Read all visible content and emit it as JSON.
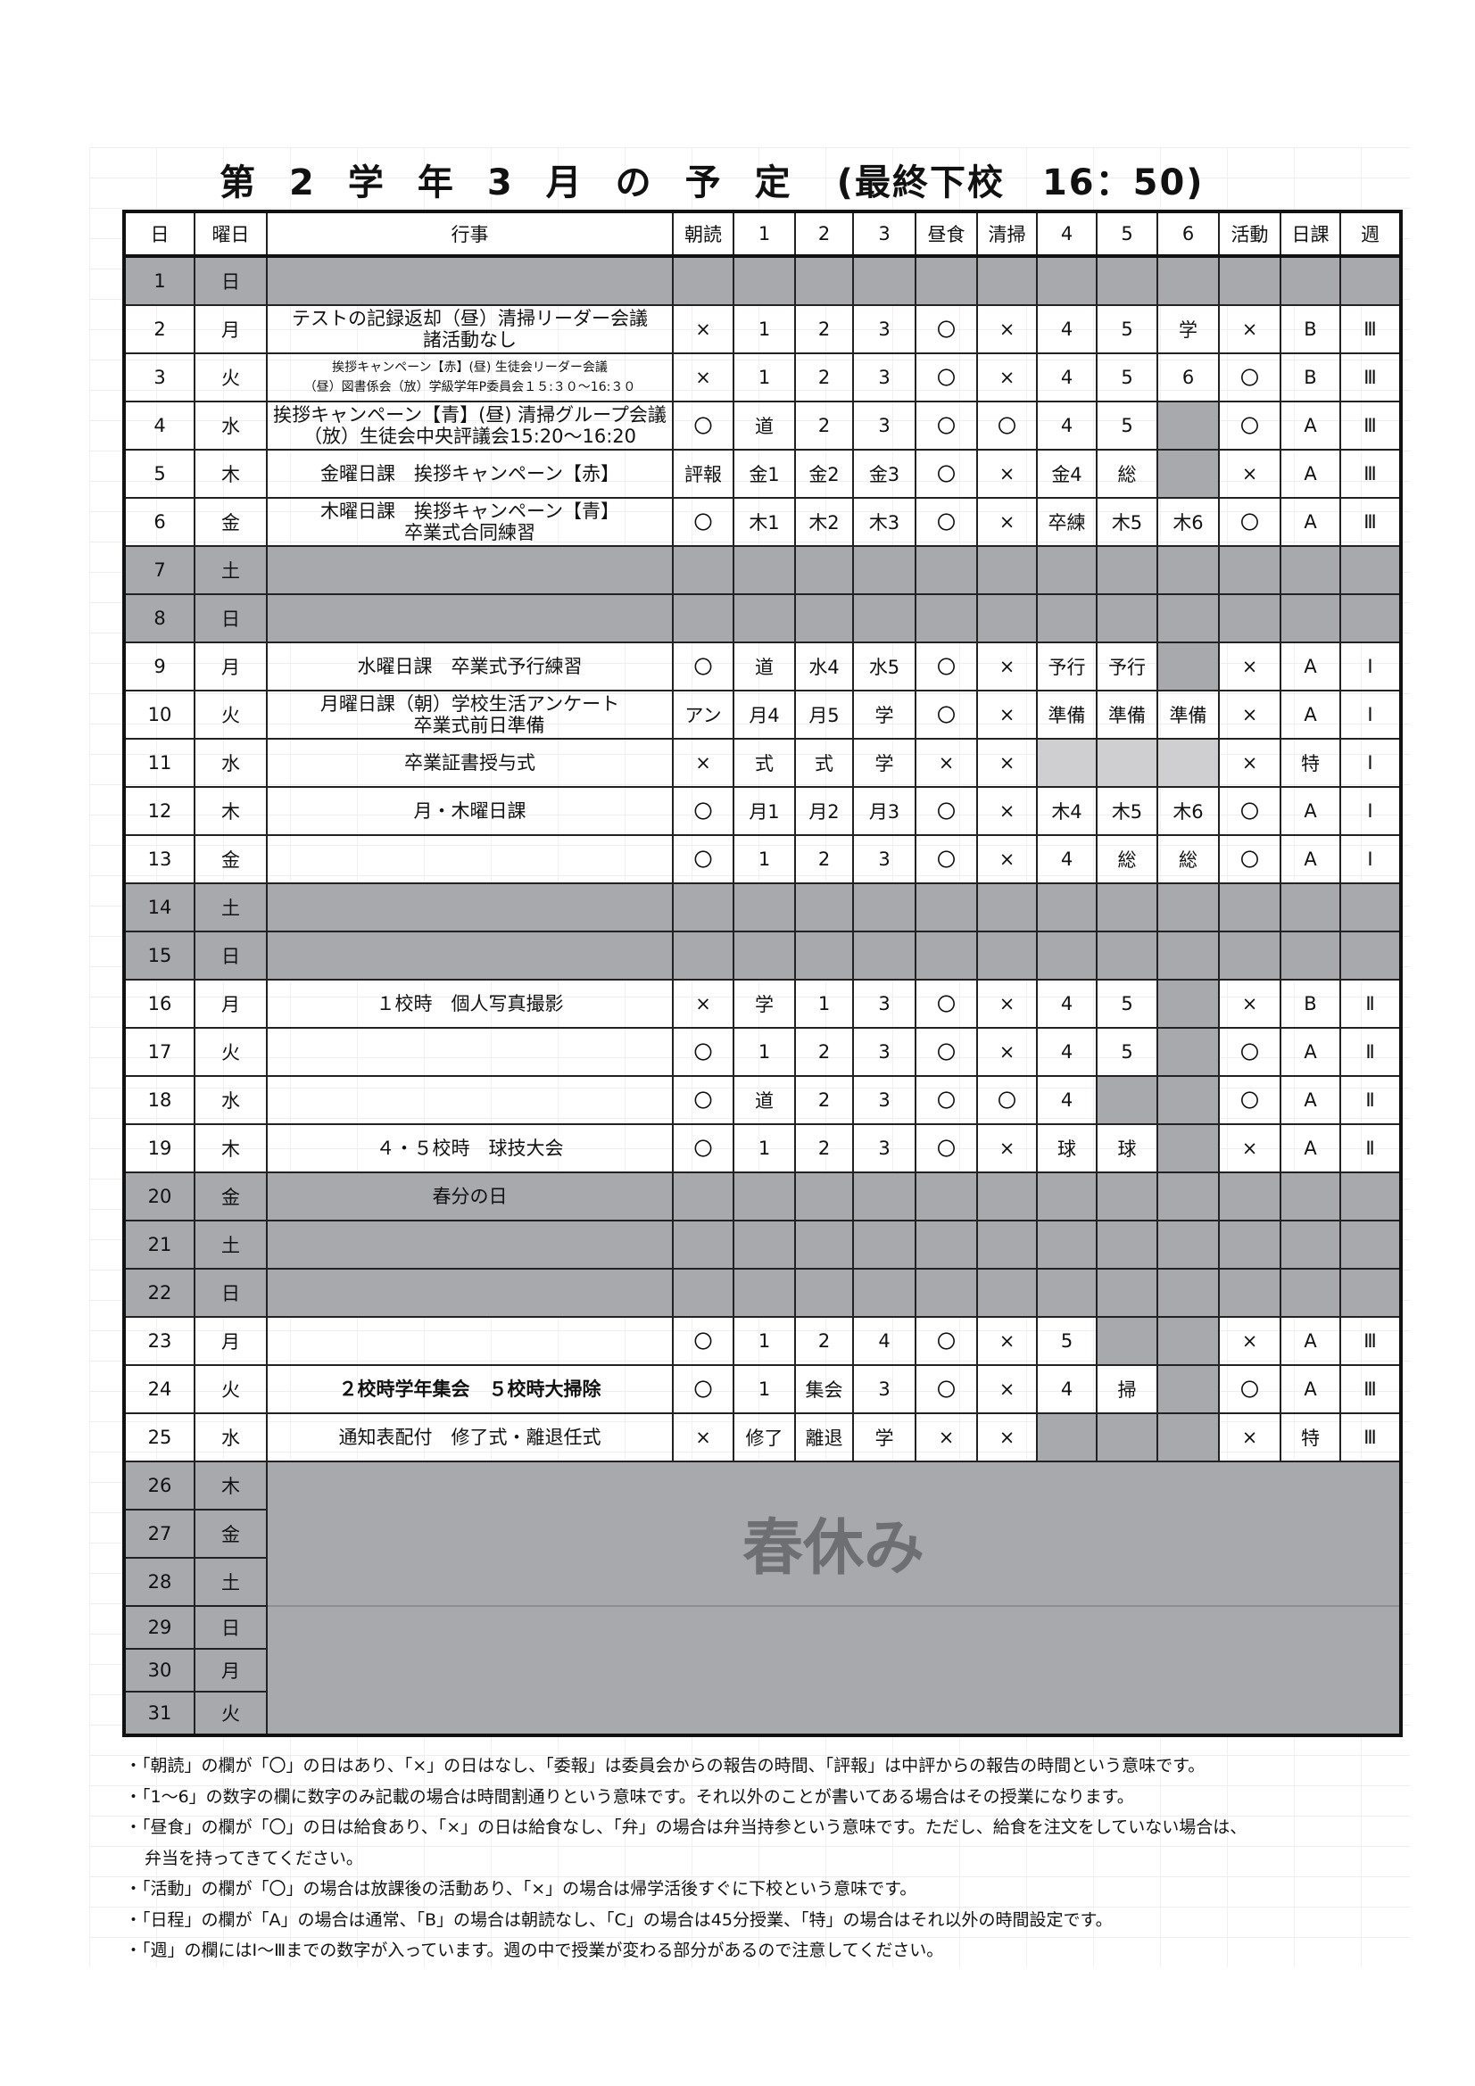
{
  "title": {
    "main": "第2学年3月の予定",
    "sub": "(最終下校　16：50)"
  },
  "colors": {
    "holiday_gray": "#a8a9ad",
    "light_gray": "#cfcfd1"
  },
  "headers": [
    "日",
    "曜日",
    "行事",
    "朝読",
    "1",
    "2",
    "3",
    "昼食",
    "清掃",
    "4",
    "5",
    "6",
    "活動",
    "日課",
    "週"
  ],
  "rows": [
    {
      "day": "1",
      "wd": "日",
      "holiday": true,
      "event": []
    },
    {
      "day": "2",
      "wd": "月",
      "event": [
        "テストの記録返却（昼）清掃リーダー会議",
        "諸活動なし"
      ],
      "cells": [
        "×",
        "1",
        "2",
        "3",
        "〇",
        "×",
        "4",
        "5",
        "学",
        "×",
        "B",
        "Ⅲ"
      ]
    },
    {
      "day": "3",
      "wd": "火",
      "small": true,
      "event": [
        "挨拶キャンペーン【赤】(昼) 生徒会リーダー会議",
        "（昼）図書係会（放）学級学年P委員会１５:３０～16:３０"
      ],
      "cells": [
        "×",
        "1",
        "2",
        "3",
        "〇",
        "×",
        "4",
        "5",
        "6",
        "〇",
        "B",
        "Ⅲ"
      ]
    },
    {
      "day": "4",
      "wd": "水",
      "event": [
        "挨拶キャンペーン【青】(昼) 清掃グループ会議",
        "（放）生徒会中央評議会15:20～16:20"
      ],
      "cells": [
        "〇",
        "道",
        "2",
        "3",
        "〇",
        "〇",
        "4",
        "5",
        null,
        "〇",
        "A",
        "Ⅲ"
      ]
    },
    {
      "day": "5",
      "wd": "木",
      "event": [
        "金曜日課　挨拶キャンペーン【赤】"
      ],
      "cells": [
        "評報",
        "金1",
        "金2",
        "金3",
        "〇",
        "×",
        "金4",
        "総",
        null,
        "×",
        "A",
        "Ⅲ"
      ]
    },
    {
      "day": "6",
      "wd": "金",
      "event": [
        "木曜日課　挨拶キャンペーン【青】",
        "卒業式合同練習"
      ],
      "cells": [
        "〇",
        "木1",
        "木2",
        "木3",
        "〇",
        "×",
        "卒練",
        "木5",
        "木6",
        "〇",
        "A",
        "Ⅲ"
      ]
    },
    {
      "day": "7",
      "wd": "土",
      "holiday": true,
      "event": []
    },
    {
      "day": "8",
      "wd": "日",
      "holiday": true,
      "event": []
    },
    {
      "day": "9",
      "wd": "月",
      "event": [
        "水曜日課　卒業式予行練習"
      ],
      "cells": [
        "〇",
        "道",
        "水4",
        "水5",
        "〇",
        "×",
        "予行",
        "予行",
        null,
        "×",
        "A",
        "Ⅰ"
      ]
    },
    {
      "day": "10",
      "wd": "火",
      "event": [
        "月曜日課（朝）学校生活アンケート",
        "　卒業式前日準備"
      ],
      "cells": [
        "アン",
        "月4",
        "月5",
        "学",
        "〇",
        "×",
        "準備",
        "準備",
        "準備",
        "×",
        "A",
        "Ⅰ"
      ]
    },
    {
      "day": "11",
      "wd": "水",
      "event": [
        "卒業証書授与式"
      ],
      "cells": [
        "×",
        "式",
        "式",
        "学",
        "×",
        "×",
        "~",
        "~",
        "~",
        "×",
        "特",
        "Ⅰ"
      ]
    },
    {
      "day": "12",
      "wd": "木",
      "event": [
        "月・木曜日課"
      ],
      "cells": [
        "〇",
        "月1",
        "月2",
        "月3",
        "〇",
        "×",
        "木4",
        "木5",
        "木6",
        "〇",
        "A",
        "Ⅰ"
      ]
    },
    {
      "day": "13",
      "wd": "金",
      "event": [],
      "cells": [
        "〇",
        "1",
        "2",
        "3",
        "〇",
        "×",
        "4",
        "総",
        "総",
        "〇",
        "A",
        "Ⅰ"
      ]
    },
    {
      "day": "14",
      "wd": "土",
      "holiday": true,
      "event": []
    },
    {
      "day": "15",
      "wd": "日",
      "holiday": true,
      "event": []
    },
    {
      "day": "16",
      "wd": "月",
      "event": [
        "１校時　個人写真撮影"
      ],
      "cells": [
        "×",
        "学",
        "1",
        "3",
        "〇",
        "×",
        "4",
        "5",
        null,
        "×",
        "B",
        "Ⅱ"
      ]
    },
    {
      "day": "17",
      "wd": "火",
      "event": [],
      "cells": [
        "〇",
        "1",
        "2",
        "3",
        "〇",
        "×",
        "4",
        "5",
        null,
        "〇",
        "A",
        "Ⅱ"
      ]
    },
    {
      "day": "18",
      "wd": "水",
      "event": [],
      "cells": [
        "〇",
        "道",
        "2",
        "3",
        "〇",
        "〇",
        "4",
        null,
        null,
        "〇",
        "A",
        "Ⅱ"
      ]
    },
    {
      "day": "19",
      "wd": "木",
      "event": [
        "４・５校時　球技大会"
      ],
      "cells": [
        "〇",
        "1",
        "2",
        "3",
        "〇",
        "×",
        "球",
        "球",
        null,
        "×",
        "A",
        "Ⅱ"
      ]
    },
    {
      "day": "20",
      "wd": "金",
      "holiday": true,
      "event": [
        "春分の日"
      ]
    },
    {
      "day": "21",
      "wd": "土",
      "holiday": true,
      "event": []
    },
    {
      "day": "22",
      "wd": "日",
      "holiday": true,
      "event": []
    },
    {
      "day": "23",
      "wd": "月",
      "event": [],
      "cells": [
        "〇",
        "1",
        "2",
        "4",
        "〇",
        "×",
        "5",
        null,
        null,
        "×",
        "A",
        "Ⅲ"
      ]
    },
    {
      "day": "24",
      "wd": "火",
      "bold": true,
      "event": [
        "２校時学年集会　５校時大掃除"
      ],
      "cells": [
        "〇",
        "1",
        "集会",
        "3",
        "〇",
        "×",
        "4",
        "掃",
        null,
        "〇",
        "A",
        "Ⅲ"
      ]
    },
    {
      "day": "25",
      "wd": "水",
      "event": [
        "通知表配付　修了式・離退任式"
      ],
      "cells": [
        "×",
        "修了",
        "離退",
        "学",
        "×",
        "×",
        null,
        null,
        null,
        "×",
        "特",
        "Ⅲ"
      ]
    }
  ],
  "spring_break": {
    "label": "春休み",
    "days": [
      {
        "day": "26",
        "wd": "木"
      },
      {
        "day": "27",
        "wd": "金"
      },
      {
        "day": "28",
        "wd": "土"
      },
      {
        "day": "29",
        "wd": "日"
      },
      {
        "day": "30",
        "wd": "月"
      },
      {
        "day": "31",
        "wd": "火"
      }
    ]
  },
  "notes": [
    "・「朝読」の欄が「〇」の日はあり、「×」の日はなし、「委報」は委員会からの報告の時間、「評報」は中評からの報告の時間という意味です。",
    "・「1～6」の数字の欄に数字のみ記載の場合は時間割通りという意味です。それ以外のことが書いてある場合はその授業になります。",
    "・「昼食」の欄が「〇」の日は給食あり、「×」の日は給食なし、「弁」の場合は弁当持参という意味です。ただし、給食を注文をしていない場合は、",
    "弁当を持ってきてください。",
    "・「活動」の欄が「〇」の場合は放課後の活動あり、「×」の場合は帰学活後すぐに下校という意味です。",
    "・「日程」の欄が「A」の場合は通常、「B」の場合は朝読なし、「C」の場合は45分授業、「特」の場合はそれ以外の時間設定です。",
    "・「週」の欄にはⅠ～Ⅲまでの数字が入っています。週の中で授業が変わる部分があるので注意してください。"
  ]
}
